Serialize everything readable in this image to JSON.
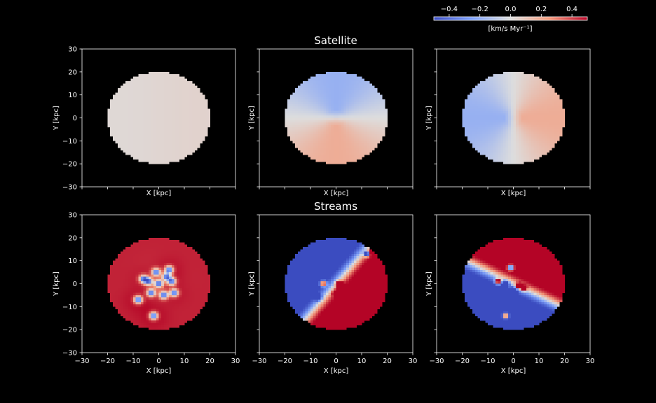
{
  "chart_data": {
    "type": "heatmap",
    "colormap": "coolwarm",
    "background": "#000000",
    "foreground": "#ffffff",
    "colorbar": {
      "range": [
        -0.5,
        0.5
      ],
      "ticks": [
        "−0.4",
        "−0.2",
        "0.0",
        "0.2",
        "0.4"
      ],
      "tick_values": [
        -0.4,
        -0.2,
        0.0,
        0.2,
        0.4
      ],
      "label": "[km/s  Myr⁻¹]",
      "placement": "top-right"
    },
    "rows": [
      {
        "title": "Satellite"
      },
      {
        "title": "Streams"
      }
    ],
    "xlim": [
      -30,
      30
    ],
    "ylim": [
      -30,
      30
    ],
    "disc_radius": 20,
    "tick_values": [
      -30,
      -20,
      -10,
      0,
      10,
      20,
      30
    ],
    "x_tick_labels": [
      "−30",
      "−20",
      "−10",
      "0",
      "10",
      "20",
      "30"
    ],
    "y_tick_labels": [
      "−30",
      "−20",
      "−10",
      "0",
      "10",
      "20",
      "30"
    ],
    "xlabel": "X [kpc]",
    "ylabel": "Y [kpc]",
    "panels": [
      {
        "id": "satellite-1",
        "row": 0,
        "col": 0,
        "kind": "uniform",
        "value": 0.03
      },
      {
        "id": "satellite-2",
        "row": 0,
        "col": 1,
        "kind": "azimuthal",
        "amplitude": 0.18,
        "peak_angle_deg": 270
      },
      {
        "id": "satellite-3",
        "row": 0,
        "col": 2,
        "kind": "azimuthal",
        "amplitude": 0.18,
        "peak_angle_deg": 0
      },
      {
        "id": "streams-1",
        "row": 1,
        "col": 0,
        "kind": "clumpy",
        "base": 0.45,
        "clumps": [
          [
            -6,
            2
          ],
          [
            -4,
            1
          ],
          [
            -3,
            -4
          ],
          [
            -2,
            -14
          ],
          [
            0,
            0
          ],
          [
            2,
            -5
          ],
          [
            4,
            6
          ],
          [
            5,
            1
          ],
          [
            6,
            -4
          ],
          [
            -8,
            -7
          ],
          [
            -1,
            5
          ],
          [
            3,
            3
          ]
        ]
      },
      {
        "id": "streams-2",
        "row": 1,
        "col": 1,
        "kind": "band",
        "slope_deg": 52,
        "width": 3,
        "knots": [
          [
            -4,
            -14
          ],
          [
            -7,
            -6
          ],
          [
            1,
            0
          ],
          [
            2,
            -1
          ],
          [
            0,
            -4
          ],
          [
            12,
            13
          ],
          [
            14,
            14
          ],
          [
            -5,
            0
          ]
        ]
      },
      {
        "id": "streams-3",
        "row": 1,
        "col": 2,
        "kind": "band",
        "slope_deg": -28,
        "width": 3,
        "invert": true,
        "knots": [
          [
            -6,
            1
          ],
          [
            -3,
            0
          ],
          [
            0,
            -3
          ],
          [
            2,
            -1
          ],
          [
            4,
            -2
          ],
          [
            -3,
            -14
          ],
          [
            -1,
            7
          ]
        ]
      }
    ]
  }
}
